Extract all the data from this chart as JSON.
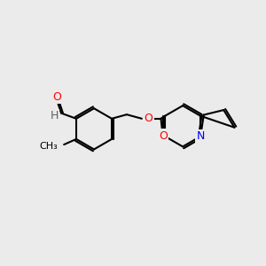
{
  "bg_color": "#ebebeb",
  "bond_color": "#000000",
  "atom_colors": {
    "O": "#ff0000",
    "N": "#0000ff",
    "C": "#000000",
    "H": "#808080"
  },
  "bond_width": 1.5,
  "font_size": 9
}
